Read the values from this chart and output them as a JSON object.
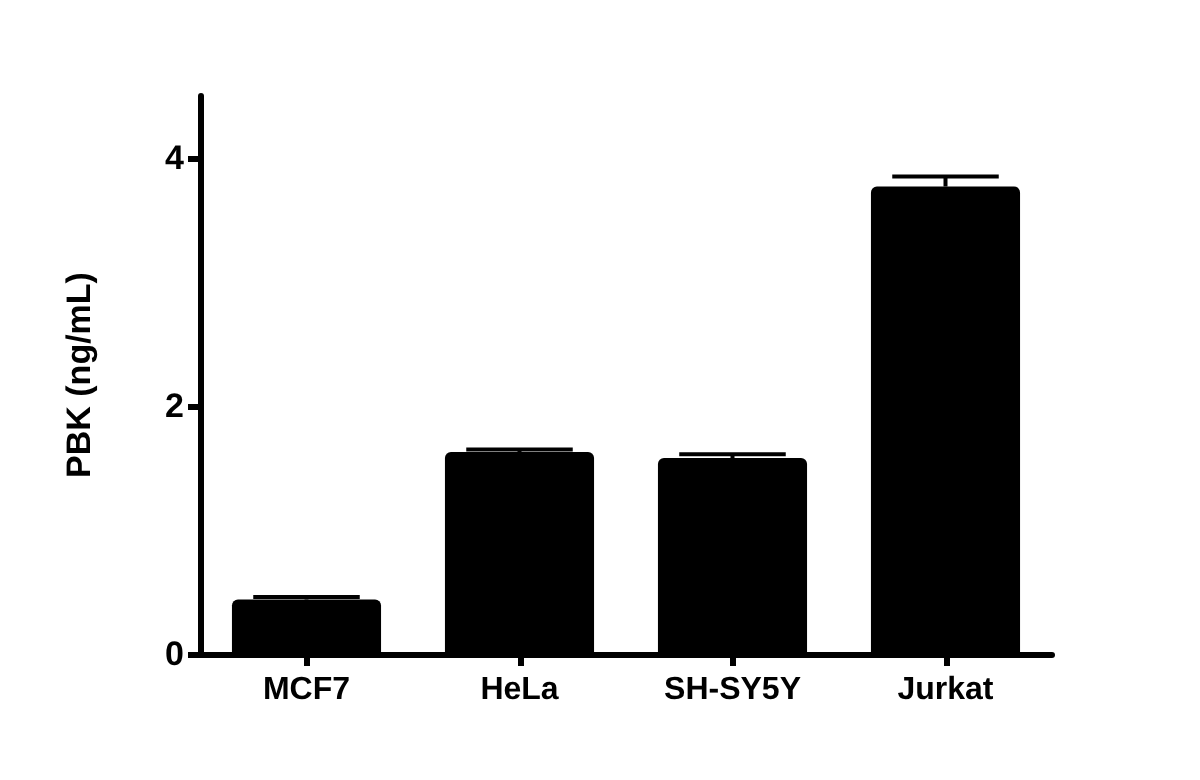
{
  "chart_data": {
    "type": "bar",
    "ylabel": "PBK (ng/mL)",
    "categories": [
      "MCF7",
      "HeLa",
      "SH-SY5Y",
      "Jurkat"
    ],
    "values": [
      0.44,
      1.63,
      1.58,
      3.77
    ],
    "errors": [
      [
        0.44,
        0.46
      ],
      [
        1.63,
        1.65
      ],
      [
        1.58,
        1.61
      ],
      [
        3.77,
        3.85
      ]
    ],
    "color": "#000000",
    "ylim": [
      0,
      4.5
    ],
    "yticks": [
      0,
      2,
      4
    ],
    "grid": false
  }
}
